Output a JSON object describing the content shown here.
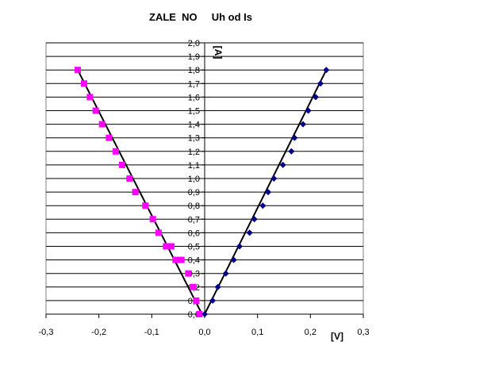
{
  "chart_data": {
    "type": "scatter",
    "title": "ZALE  NO     Uh od Is",
    "xlabel": "[V]",
    "ylabel": "[A]",
    "xlim": [
      -0.3,
      0.3
    ],
    "ylim": [
      0,
      2.0
    ],
    "x_ticks": [
      "-0,3",
      "-0,2",
      "-0,1",
      "0,0",
      "0,1",
      "0,2",
      "0,3"
    ],
    "y_ticks": [
      "0,0",
      "0,1",
      "0,2",
      "0,3",
      "0,4",
      "0,5",
      "0,6",
      "0,7",
      "0,8",
      "0,9",
      "1,0",
      "1,1",
      "1,2",
      "1,3",
      "1,4",
      "1,5",
      "1,6",
      "1,7",
      "1,8",
      "1,9",
      "2,0"
    ],
    "grid": "horizontal",
    "series": [
      {
        "color": "#ff00ff",
        "marker": "square",
        "x": [
          -0.01,
          -0.016,
          -0.022,
          -0.031,
          -0.044,
          -0.055,
          -0.063,
          -0.073,
          -0.087,
          -0.098,
          -0.112,
          -0.131,
          -0.142,
          -0.156,
          -0.168,
          -0.181,
          -0.194,
          -0.206,
          -0.217,
          -0.228,
          -0.24
        ],
        "y": [
          0.0,
          0.1,
          0.2,
          0.3,
          0.4,
          0.4,
          0.5,
          0.5,
          0.6,
          0.7,
          0.8,
          0.9,
          1.0,
          1.1,
          1.2,
          1.3,
          1.4,
          1.5,
          1.6,
          1.7,
          1.8
        ]
      },
      {
        "color": "#00008b",
        "marker": "diamond",
        "x": [
          0.0,
          0.015,
          0.025,
          0.04,
          0.055,
          0.066,
          0.085,
          0.094,
          0.11,
          0.12,
          0.131,
          0.148,
          0.164,
          0.17,
          0.186,
          0.196,
          0.21,
          0.219,
          0.23
        ],
        "y": [
          0.0,
          0.1,
          0.2,
          0.3,
          0.4,
          0.5,
          0.6,
          0.7,
          0.8,
          0.9,
          1.0,
          1.1,
          1.2,
          1.3,
          1.4,
          1.5,
          1.6,
          1.7,
          1.8
        ]
      }
    ],
    "trendlines": [
      {
        "color": "#000000",
        "x": [
          -0.24,
          -0.005
        ],
        "y": [
          1.8,
          0.0
        ]
      },
      {
        "color": "#000000",
        "x": [
          0.0,
          0.23
        ],
        "y": [
          0.0,
          1.8
        ]
      }
    ]
  }
}
